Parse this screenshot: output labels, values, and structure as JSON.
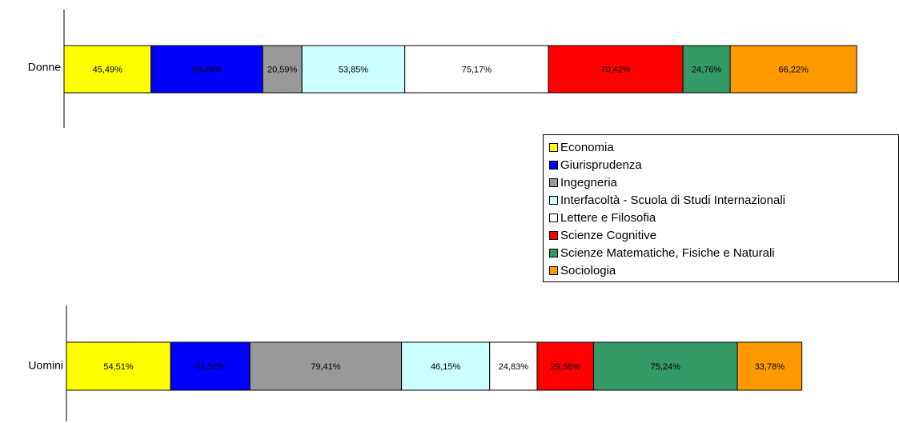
{
  "chart_data": {
    "type": "stacked-bar-horizontal",
    "categories": [
      "Donne",
      "Uomini"
    ],
    "series": [
      {
        "name": "Economia",
        "color": "#ffff00",
        "values": [
          45.49,
          54.51
        ],
        "value_labels": [
          "45,49%",
          "54,51%"
        ]
      },
      {
        "name": "Giurisprudenza",
        "color": "#0000ff",
        "values": [
          58.48,
          41.52
        ],
        "value_labels": [
          "58,48%",
          "41,52%"
        ]
      },
      {
        "name": "Ingegneria",
        "color": "#999999",
        "values": [
          20.59,
          79.41
        ],
        "value_labels": [
          "20,59%",
          "79,41%"
        ]
      },
      {
        "name": "Interfacoltà - Scuola di Studi Internazionali",
        "color": "#ccffff",
        "values": [
          53.85,
          46.15
        ],
        "value_labels": [
          "53,85%",
          "46,15%"
        ]
      },
      {
        "name": "Lettere e Filosofia",
        "color": "#ffffff",
        "values": [
          75.17,
          24.83
        ],
        "value_labels": [
          "75,17%",
          "24,83%"
        ]
      },
      {
        "name": "Scienze Cognitive",
        "color": "#ff0000",
        "values": [
          70.42,
          29.58
        ],
        "value_labels": [
          "70,42%",
          "29,58%"
        ]
      },
      {
        "name": "Scienze Matematiche, Fisiche e Naturali",
        "color": "#339966",
        "values": [
          24.76,
          75.24
        ],
        "value_labels": [
          "24,76%",
          "75,24%"
        ]
      },
      {
        "name": "Sociologia",
        "color": "#ff9900",
        "values": [
          66.22,
          33.78
        ],
        "value_labels": [
          "66,22%",
          "33,78%"
        ]
      }
    ]
  }
}
